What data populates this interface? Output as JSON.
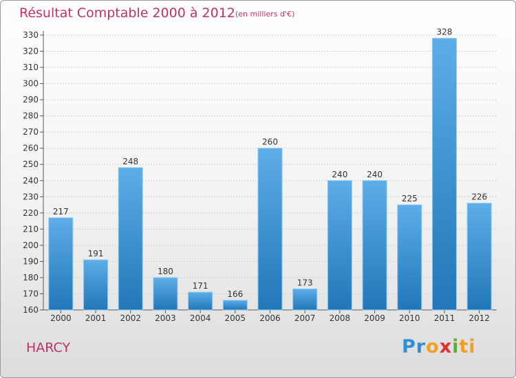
{
  "header": {
    "title": "Résultat Comptable 2000 à 2012",
    "subtitle": "(en milliers d'€)"
  },
  "footer": {
    "commune": "HARCY",
    "logo_letters": [
      "P",
      "r",
      "o",
      "x",
      "i",
      "ti"
    ]
  },
  "colors": {
    "bar_top": "#5dade8",
    "bar_bottom": "#2177b8",
    "title": "#c0306a",
    "grid": "#d0d0d0"
  },
  "chart_data": {
    "type": "bar",
    "title": "Résultat Comptable 2000 à 2012",
    "subtitle": "(en milliers d'€)",
    "xlabel": "",
    "ylabel": "",
    "categories": [
      "2000",
      "2001",
      "2002",
      "2003",
      "2004",
      "2005",
      "2006",
      "2007",
      "2008",
      "2009",
      "2010",
      "2011",
      "2012"
    ],
    "values": [
      217,
      191,
      248,
      180,
      171,
      166,
      260,
      173,
      240,
      240,
      225,
      328,
      226
    ],
    "ylim": [
      160,
      330
    ],
    "ytick_step": 10,
    "grid": true
  }
}
